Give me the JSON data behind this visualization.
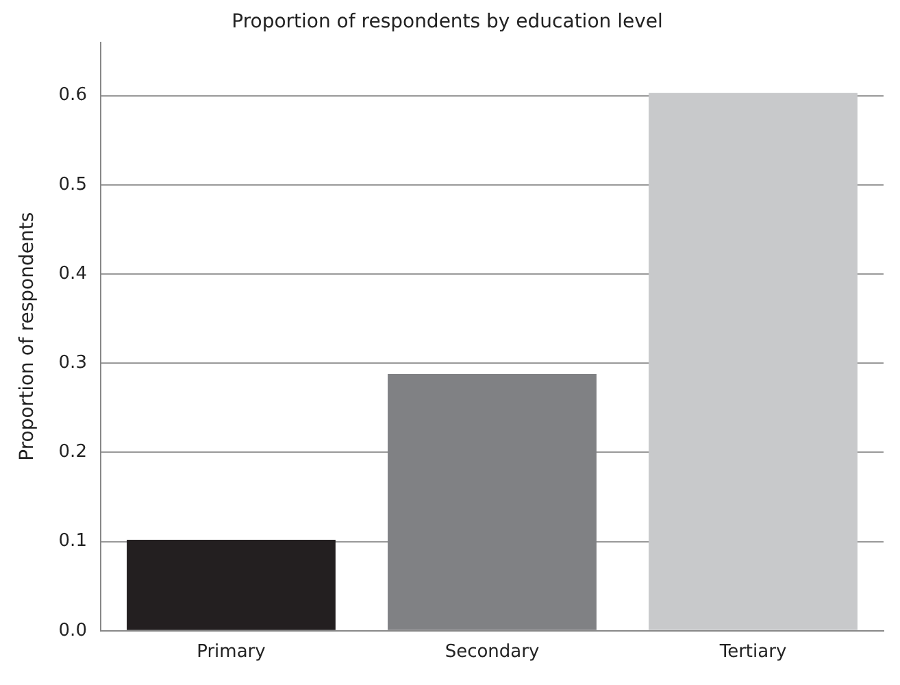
{
  "chart_data": {
    "type": "bar",
    "title": "Proportion of respondents by education level",
    "ylabel": "Proportion of respondents",
    "categories": [
      "Primary",
      "Secondary",
      "Tertiary"
    ],
    "values": [
      0.102,
      0.288,
      0.603
    ],
    "colors": [
      "#231f20",
      "#808184",
      "#c8c9cb"
    ],
    "ylim": [
      0,
      0.66
    ],
    "yticks": [
      {
        "value": 0,
        "label": "0.0"
      },
      0.1,
      0.2,
      0.3,
      0.4,
      0.5,
      0.6
    ],
    "grid": "y"
  }
}
